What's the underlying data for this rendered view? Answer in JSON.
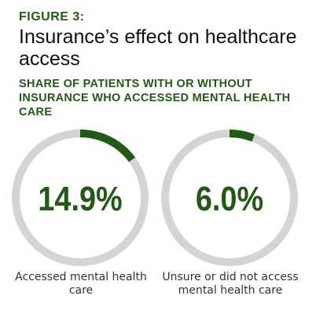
{
  "figure_label": "FIGURE 3:",
  "title": "Insurance’s effect on healthcare access",
  "subtitle": "SHARE OF PATIENTS WITH OR WITHOUT INSURANCE WHO ACCESSED MENTAL HEALTH CARE",
  "colors": {
    "accent": "#215a14",
    "track": "#d4d4d4"
  },
  "chart_data": {
    "type": "pie",
    "title": "SHARE OF PATIENTS WITH OR WITHOUT INSURANCE WHO ACCESSED MENTAL HEALTH CARE",
    "series": [
      {
        "name": "Accessed mental health care",
        "value": 14.9,
        "label": "14.9%"
      },
      {
        "name": "Unsure or did not access mental health care",
        "value": 6.0,
        "label": "6.0%"
      }
    ]
  }
}
